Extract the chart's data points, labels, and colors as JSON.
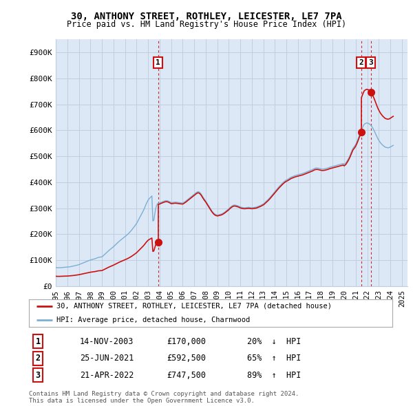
{
  "title": "30, ANTHONY STREET, ROTHLEY, LEICESTER, LE7 7PA",
  "subtitle": "Price paid vs. HM Land Registry's House Price Index (HPI)",
  "ylabel_ticks": [
    "£0",
    "£100K",
    "£200K",
    "£300K",
    "£400K",
    "£500K",
    "£600K",
    "£700K",
    "£800K",
    "£900K"
  ],
  "ytick_values": [
    0,
    100000,
    200000,
    300000,
    400000,
    500000,
    600000,
    700000,
    800000,
    900000
  ],
  "ylim": [
    0,
    950000
  ],
  "xlim_start": 1995.0,
  "xlim_end": 2025.5,
  "hpi_color": "#7bafd4",
  "price_color": "#cc1111",
  "chart_bg_color": "#dce8f5",
  "legend_label_price": "30, ANTHONY STREET, ROTHLEY, LEICESTER, LE7 7PA (detached house)",
  "legend_label_hpi": "HPI: Average price, detached house, Charnwood",
  "transactions": [
    {
      "num": 1,
      "date": "14-NOV-2003",
      "price": 170000,
      "pct": "20%",
      "dir": "↓",
      "year": 2003.87
    },
    {
      "num": 2,
      "date": "25-JUN-2021",
      "price": 592500,
      "pct": "65%",
      "dir": "↑",
      "year": 2021.48
    },
    {
      "num": 3,
      "date": "21-APR-2022",
      "price": 747500,
      "pct": "89%",
      "dir": "↑",
      "year": 2022.3
    }
  ],
  "footer_line1": "Contains HM Land Registry data © Crown copyright and database right 2024.",
  "footer_line2": "This data is licensed under the Open Government Licence v3.0.",
  "background_color": "#ffffff",
  "grid_color": "#c0cfe0",
  "hpi_monthly": {
    "years": [
      1995,
      1995.083,
      1995.167,
      1995.25,
      1995.333,
      1995.417,
      1995.5,
      1995.583,
      1995.667,
      1995.75,
      1995.833,
      1995.917,
      1996,
      1996.083,
      1996.167,
      1996.25,
      1996.333,
      1996.417,
      1996.5,
      1996.583,
      1996.667,
      1996.75,
      1996.833,
      1996.917,
      1997,
      1997.083,
      1997.167,
      1997.25,
      1997.333,
      1997.417,
      1997.5,
      1997.583,
      1997.667,
      1997.75,
      1997.833,
      1997.917,
      1998,
      1998.083,
      1998.167,
      1998.25,
      1998.333,
      1998.417,
      1998.5,
      1998.583,
      1998.667,
      1998.75,
      1998.833,
      1998.917,
      1999,
      1999.083,
      1999.167,
      1999.25,
      1999.333,
      1999.417,
      1999.5,
      1999.583,
      1999.667,
      1999.75,
      1999.833,
      1999.917,
      2000,
      2000.083,
      2000.167,
      2000.25,
      2000.333,
      2000.417,
      2000.5,
      2000.583,
      2000.667,
      2000.75,
      2000.833,
      2000.917,
      2001,
      2001.083,
      2001.167,
      2001.25,
      2001.333,
      2001.417,
      2001.5,
      2001.583,
      2001.667,
      2001.75,
      2001.833,
      2001.917,
      2002,
      2002.083,
      2002.167,
      2002.25,
      2002.333,
      2002.417,
      2002.5,
      2002.583,
      2002.667,
      2002.75,
      2002.833,
      2002.917,
      2003,
      2003.083,
      2003.167,
      2003.25,
      2003.333,
      2003.417,
      2003.5,
      2003.583,
      2003.667,
      2003.75,
      2003.833,
      2003.917,
      2004,
      2004.083,
      2004.167,
      2004.25,
      2004.333,
      2004.417,
      2004.5,
      2004.583,
      2004.667,
      2004.75,
      2004.833,
      2004.917,
      2005,
      2005.083,
      2005.167,
      2005.25,
      2005.333,
      2005.417,
      2005.5,
      2005.583,
      2005.667,
      2005.75,
      2005.833,
      2005.917,
      2006,
      2006.083,
      2006.167,
      2006.25,
      2006.333,
      2006.417,
      2006.5,
      2006.583,
      2006.667,
      2006.75,
      2006.833,
      2006.917,
      2007,
      2007.083,
      2007.167,
      2007.25,
      2007.333,
      2007.417,
      2007.5,
      2007.583,
      2007.667,
      2007.75,
      2007.833,
      2007.917,
      2008,
      2008.083,
      2008.167,
      2008.25,
      2008.333,
      2008.417,
      2008.5,
      2008.583,
      2008.667,
      2008.75,
      2008.833,
      2008.917,
      2009,
      2009.083,
      2009.167,
      2009.25,
      2009.333,
      2009.417,
      2009.5,
      2009.583,
      2009.667,
      2009.75,
      2009.833,
      2009.917,
      2010,
      2010.083,
      2010.167,
      2010.25,
      2010.333,
      2010.417,
      2010.5,
      2010.583,
      2010.667,
      2010.75,
      2010.833,
      2010.917,
      2011,
      2011.083,
      2011.167,
      2011.25,
      2011.333,
      2011.417,
      2011.5,
      2011.583,
      2011.667,
      2011.75,
      2011.833,
      2011.917,
      2012,
      2012.083,
      2012.167,
      2012.25,
      2012.333,
      2012.417,
      2012.5,
      2012.583,
      2012.667,
      2012.75,
      2012.833,
      2012.917,
      2013,
      2013.083,
      2013.167,
      2013.25,
      2013.333,
      2013.417,
      2013.5,
      2013.583,
      2013.667,
      2013.75,
      2013.833,
      2013.917,
      2014,
      2014.083,
      2014.167,
      2014.25,
      2014.333,
      2014.417,
      2014.5,
      2014.583,
      2014.667,
      2014.75,
      2014.833,
      2014.917,
      2015,
      2015.083,
      2015.167,
      2015.25,
      2015.333,
      2015.417,
      2015.5,
      2015.583,
      2015.667,
      2015.75,
      2015.833,
      2015.917,
      2016,
      2016.083,
      2016.167,
      2016.25,
      2016.333,
      2016.417,
      2016.5,
      2016.583,
      2016.667,
      2016.75,
      2016.833,
      2016.917,
      2017,
      2017.083,
      2017.167,
      2017.25,
      2017.333,
      2017.417,
      2017.5,
      2017.583,
      2017.667,
      2017.75,
      2017.833,
      2017.917,
      2018,
      2018.083,
      2018.167,
      2018.25,
      2018.333,
      2018.417,
      2018.5,
      2018.583,
      2018.667,
      2018.75,
      2018.833,
      2018.917,
      2019,
      2019.083,
      2019.167,
      2019.25,
      2019.333,
      2019.417,
      2019.5,
      2019.583,
      2019.667,
      2019.75,
      2019.833,
      2019.917,
      2020,
      2020.083,
      2020.167,
      2020.25,
      2020.333,
      2020.417,
      2020.5,
      2020.583,
      2020.667,
      2020.75,
      2020.833,
      2020.917,
      2021,
      2021.083,
      2021.167,
      2021.25,
      2021.333,
      2021.417,
      2021.5,
      2021.583,
      2021.667,
      2021.75,
      2021.833,
      2021.917,
      2022,
      2022.083,
      2022.167,
      2022.25,
      2022.333,
      2022.417,
      2022.5,
      2022.583,
      2022.667,
      2022.75,
      2022.833,
      2022.917,
      2023,
      2023.083,
      2023.167,
      2023.25,
      2023.333,
      2023.417,
      2023.5,
      2023.583,
      2023.667,
      2023.75,
      2023.833,
      2023.917,
      2024,
      2024.083,
      2024.167,
      2024.25
    ],
    "values": [
      72000,
      71500,
      71200,
      71000,
      71200,
      71500,
      71800,
      72100,
      72500,
      72800,
      73000,
      73200,
      73500,
      74000,
      74500,
      75000,
      75800,
      76500,
      77200,
      78000,
      79000,
      80000,
      81000,
      82000,
      83000,
      84500,
      86000,
      87500,
      89000,
      90500,
      92000,
      93500,
      95000,
      96500,
      98000,
      99500,
      101000,
      102000,
      103000,
      104000,
      105000,
      106000,
      107500,
      109000,
      110500,
      111500,
      112000,
      112500,
      113000,
      116000,
      119500,
      123000,
      126500,
      130000,
      133500,
      137000,
      140000,
      143000,
      146000,
      149000,
      152000,
      155500,
      159000,
      162500,
      166000,
      169500,
      173000,
      176000,
      179000,
      182000,
      185000,
      188000,
      191000,
      194000,
      197000,
      200500,
      204000,
      208000,
      212000,
      216500,
      221000,
      226000,
      231000,
      236000,
      241000,
      248000,
      255000,
      262000,
      269000,
      276000,
      283000,
      290000,
      298000,
      307000,
      316000,
      324000,
      331000,
      336000,
      340000,
      344000,
      347500,
      251000,
      254000,
      278000,
      300000,
      312000,
      318000,
      319000,
      320000,
      322000,
      323500,
      325000,
      326500,
      328000,
      329000,
      329500,
      329000,
      328000,
      326000,
      324000,
      322000,
      322000,
      322500,
      323000,
      323500,
      323500,
      323000,
      322500,
      322000,
      321500,
      321000,
      320500,
      320000,
      322000,
      324500,
      327000,
      330000,
      333000,
      336000,
      339000,
      342000,
      345000,
      348000,
      351000,
      354000,
      357000,
      360000,
      362500,
      364000,
      363000,
      360000,
      356000,
      350000,
      344000,
      338000,
      333000,
      328000,
      322000,
      316000,
      310000,
      304000,
      298000,
      292000,
      287000,
      282500,
      279000,
      276500,
      275000,
      274000,
      274500,
      275500,
      276500,
      277500,
      279000,
      281000,
      283500,
      286000,
      289000,
      292000,
      295000,
      298000,
      302000,
      305000,
      308000,
      310500,
      312000,
      312500,
      312000,
      311000,
      310000,
      308500,
      307000,
      305000,
      304000,
      303000,
      302500,
      302000,
      302000,
      302500,
      303000,
      303500,
      303500,
      303000,
      302500,
      302000,
      302500,
      303000,
      303500,
      304000,
      305000,
      306500,
      308000,
      309500,
      311000,
      313000,
      315000,
      317000,
      320000,
      323500,
      327000,
      330500,
      334000,
      338000,
      342000,
      346500,
      351000,
      355500,
      360000,
      364000,
      368500,
      373000,
      377500,
      382000,
      386000,
      390000,
      394000,
      397500,
      401000,
      404000,
      407000,
      409000,
      411000,
      413000,
      415500,
      418000,
      420000,
      421500,
      423000,
      424500,
      426000,
      427000,
      428000,
      429000,
      430000,
      431000,
      432000,
      433000,
      434000,
      435500,
      437000,
      438500,
      440000,
      441500,
      443000,
      444500,
      446000,
      447500,
      449000,
      451000,
      453000,
      454500,
      455000,
      455000,
      454500,
      453500,
      452500,
      451500,
      451000,
      451000,
      451500,
      452000,
      453000,
      454000,
      455000,
      456500,
      458000,
      459000,
      460000,
      461000,
      462000,
      463000,
      464000,
      465000,
      466000,
      467000,
      468000,
      469000,
      470000,
      471000,
      472000,
      469000,
      472000,
      476000,
      482000,
      488000,
      495000,
      503000,
      512000,
      521000,
      530000,
      535000,
      540000,
      546000,
      554000,
      563000,
      573000,
      583000,
      593000,
      602000,
      610000,
      618000,
      624000,
      626000,
      628000,
      628000,
      627000,
      625000,
      622000,
      618000,
      613000,
      607000,
      600000,
      592000,
      584000,
      576000,
      568000,
      562000,
      556000,
      551000,
      547000,
      543000,
      540000,
      537000,
      535000,
      534000,
      533000,
      533000,
      534000,
      536000,
      538000,
      540000,
      542000
    ]
  }
}
